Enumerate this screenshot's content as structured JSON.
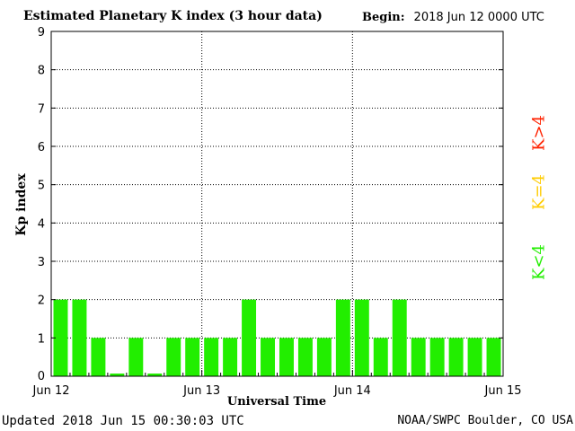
{
  "header": {
    "title": "Estimated Planetary K index (3 hour data)",
    "begin_label": "Begin:",
    "begin_value": "2018 Jun 12 0000 UTC"
  },
  "footer": {
    "updated": "Updated 2018 Jun 15 00:30:03 UTC",
    "credit": "NOAA/SWPC Boulder, CO USA"
  },
  "legend": {
    "k_gt4": "K>4",
    "k_eq4": "K=4",
    "k_lt4": "K<4",
    "colors": {
      "k_gt4": "#ff2200",
      "k_eq4": "#ffcc00",
      "k_lt4": "#22ee00"
    }
  },
  "chart_data": {
    "type": "bar",
    "xlabel": "Universal Time",
    "ylabel": "Kp index",
    "ylim": [
      0,
      9
    ],
    "yticks": [
      0,
      1,
      2,
      3,
      4,
      5,
      6,
      7,
      8,
      9
    ],
    "xticks": [
      "Jun 12",
      "Jun 13",
      "Jun 14",
      "Jun 15"
    ],
    "bar_color": "#22ee00",
    "grid": true,
    "values": [
      2,
      2,
      1,
      0.07,
      1,
      0.07,
      1,
      1,
      1,
      1,
      2,
      1,
      1,
      1,
      1,
      2,
      2,
      1,
      2,
      1,
      1,
      1,
      1,
      1
    ]
  }
}
